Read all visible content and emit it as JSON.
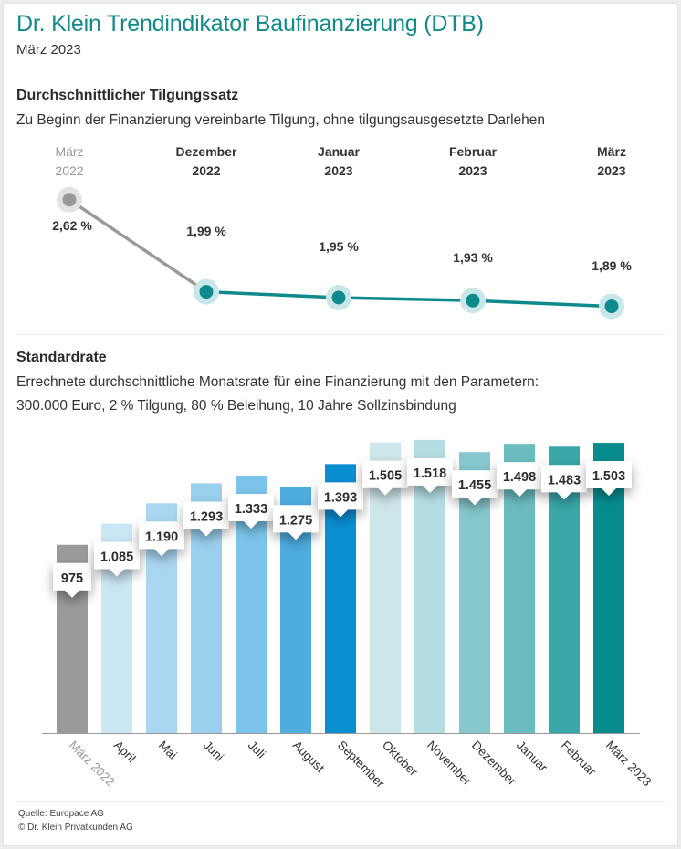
{
  "header": {
    "title": "Dr. Klein Trendindikator Baufinanzierung (DTB)",
    "subtitle": "März 2023"
  },
  "colors": {
    "brand": "#12898a",
    "teal_line": "#0f8a8c",
    "gray_line": "#999999"
  },
  "footer": {
    "source": "Quelle: Europace AG",
    "copyright": "© Dr. Klein Privatkunden AG"
  },
  "chart_data": [
    {
      "type": "line",
      "title": "Durchschnittlicher Tilgungssatz",
      "subtitle": "Zu Beginn der Finanzierung vereinbarte Tilgung, ohne tilgungsausgesetzte Darlehen",
      "categories": [
        {
          "month": "März",
          "year": "2022"
        },
        {
          "month": "Dezember",
          "year": "2022"
        },
        {
          "month": "Januar",
          "year": "2023"
        },
        {
          "month": "Februar",
          "year": "2023"
        },
        {
          "month": "März",
          "year": "2023"
        }
      ],
      "values": [
        2.62,
        1.99,
        1.95,
        1.93,
        1.89
      ],
      "labels": [
        "2,62 %",
        "1,99 %",
        "1,95 %",
        "1,93 %",
        "1,89 %"
      ],
      "unit": "%",
      "highlight_first": true,
      "colors": {
        "first": "#999999",
        "rest": "#0f8a8c"
      }
    },
    {
      "type": "bar",
      "title": "Standardrate",
      "subtitle_lines": [
        "Errechnete durchschnittliche Monatsrate für eine Finanzierung mit den Parametern:",
        "300.000 Euro, 2 % Tilgung, 80 % Beleihung, 10 Jahre Sollzinsbindung"
      ],
      "categories": [
        "März 2022",
        "April",
        "Mai",
        "Juni",
        "Juli",
        "August",
        "September",
        "Oktober",
        "November",
        "Dezember",
        "Januar",
        "Februar",
        "März 2023"
      ],
      "values": [
        975,
        1085,
        1190,
        1293,
        1333,
        1275,
        1393,
        1505,
        1518,
        1455,
        1498,
        1483,
        1503
      ],
      "labels": [
        "975",
        "1.085",
        "1.190",
        "1.293",
        "1.333",
        "1.275",
        "1.393",
        "1.505",
        "1.518",
        "1.455",
        "1.498",
        "1.483",
        "1.503"
      ],
      "colors": [
        "#9a9a9a",
        "#cbe7f6",
        "#a9d6f1",
        "#98d0ee",
        "#7cc4ec",
        "#4eacdf",
        "#0a8ed2",
        "#cde6ea",
        "#b3dde2",
        "#86c8cd",
        "#6bbcc0",
        "#3aa7ab",
        "#078c8e"
      ],
      "ylim": [
        0,
        1560
      ],
      "xlabel": "",
      "ylabel": "",
      "grid": false
    }
  ]
}
